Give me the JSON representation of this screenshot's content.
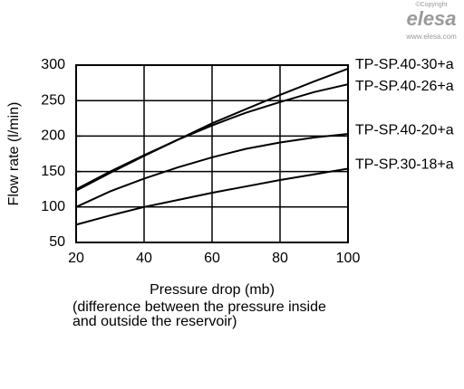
{
  "chart_data": {
    "type": "line",
    "watermark": [
      "©Copyright",
      "elesa",
      "www.elesa.com"
    ],
    "xlabel": "Pressure drop (mb)",
    "xlabel_note": [
      "(difference between the pressure inside",
      "and outside the reservoir)"
    ],
    "ylabel": "Flow rate (l/min)",
    "x": [
      20,
      30,
      40,
      50,
      60,
      70,
      80,
      90,
      100
    ],
    "series": [
      {
        "name": "TP-SP.40-30+a",
        "color": "#000000",
        "values": [
          125,
          150,
          173,
          195,
          218,
          238,
          258,
          277,
          295
        ]
      },
      {
        "name": "TP-SP.40-26+a",
        "color": "#000000",
        "values": [
          123,
          148,
          172,
          195,
          215,
          233,
          248,
          262,
          273
        ]
      },
      {
        "name": "TP-SP.40-20+a",
        "color": "#000000",
        "values": [
          100,
          122,
          140,
          156,
          170,
          182,
          191,
          198,
          203
        ]
      },
      {
        "name": "TP-SP.30-18+a",
        "color": "#000000",
        "values": [
          75,
          88,
          100,
          110,
          120,
          129,
          138,
          146,
          154
        ]
      }
    ],
    "xlim": [
      20,
      100
    ],
    "xticks": [
      20,
      40,
      60,
      80,
      100
    ],
    "ylim": [
      50,
      300
    ],
    "yticks": [
      50,
      100,
      150,
      200,
      250,
      300
    ],
    "grid": true
  }
}
